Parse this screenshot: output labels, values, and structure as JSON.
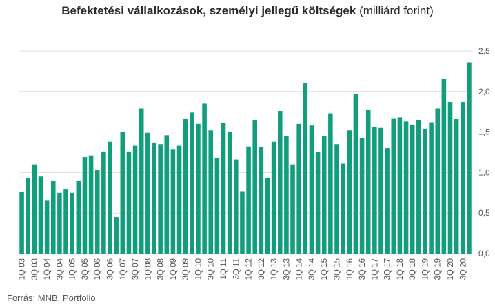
{
  "title": "Befektetési vállalkozások, személyi jellegű költségek",
  "unit": "(milliárd forint)",
  "source": "Forrás: MNB, Portfolio",
  "colors": {
    "bar": "#129e7d",
    "grid": "#dddddd",
    "text": "#555555"
  },
  "chart_data": {
    "type": "bar",
    "title": "Befektetési vállalkozások, személyi jellegű költségek (milliárd forint)",
    "ylim": [
      0,
      2.5
    ],
    "yticks": [
      "0,0",
      "0,5",
      "1,0",
      "1,5",
      "2,0",
      "2,5"
    ],
    "ytick_values": [
      0,
      0.5,
      1.0,
      1.5,
      2.0,
      2.5
    ],
    "y_axis_side": "right",
    "grid": true,
    "tick_labels": [
      "1Q 03",
      "3Q 03",
      "1Q 04",
      "3Q 04",
      "1Q 05",
      "3Q 05",
      "1Q 06",
      "3Q 06",
      "1Q 07",
      "3Q 07",
      "1Q 08",
      "3Q 08",
      "1Q 09",
      "3Q 09",
      "1Q 10",
      "3Q 10",
      "1Q 11",
      "3Q 11",
      "1Q 12",
      "3Q 12",
      "1Q 13",
      "3Q 13",
      "1Q 14",
      "3Q 14",
      "1Q 15",
      "3Q 15",
      "1Q 16",
      "3Q 16",
      "1Q 17",
      "3Q 17",
      "1Q 18",
      "3Q 18",
      "1Q 19",
      "3Q 19",
      "1Q 20",
      "3Q 20"
    ],
    "values": [
      0.76,
      0.93,
      1.1,
      0.95,
      0.66,
      0.9,
      0.75,
      0.79,
      0.75,
      0.9,
      1.19,
      1.21,
      1.03,
      1.26,
      1.38,
      0.45,
      1.5,
      1.26,
      1.33,
      1.79,
      1.49,
      1.37,
      1.35,
      1.46,
      1.29,
      1.33,
      1.66,
      1.74,
      1.6,
      1.85,
      1.52,
      1.18,
      1.61,
      1.5,
      1.16,
      0.77,
      1.32,
      1.65,
      1.31,
      0.93,
      1.38,
      1.76,
      1.45,
      1.1,
      1.6,
      2.1,
      1.58,
      1.25,
      1.45,
      1.73,
      1.35,
      1.11,
      1.52,
      1.97,
      1.42,
      1.77,
      1.56,
      1.55,
      1.3,
      1.67,
      1.68,
      1.63,
      1.59,
      1.65,
      1.54,
      1.62,
      1.79,
      2.16,
      1.87,
      1.66,
      1.87,
      2.36
    ]
  }
}
